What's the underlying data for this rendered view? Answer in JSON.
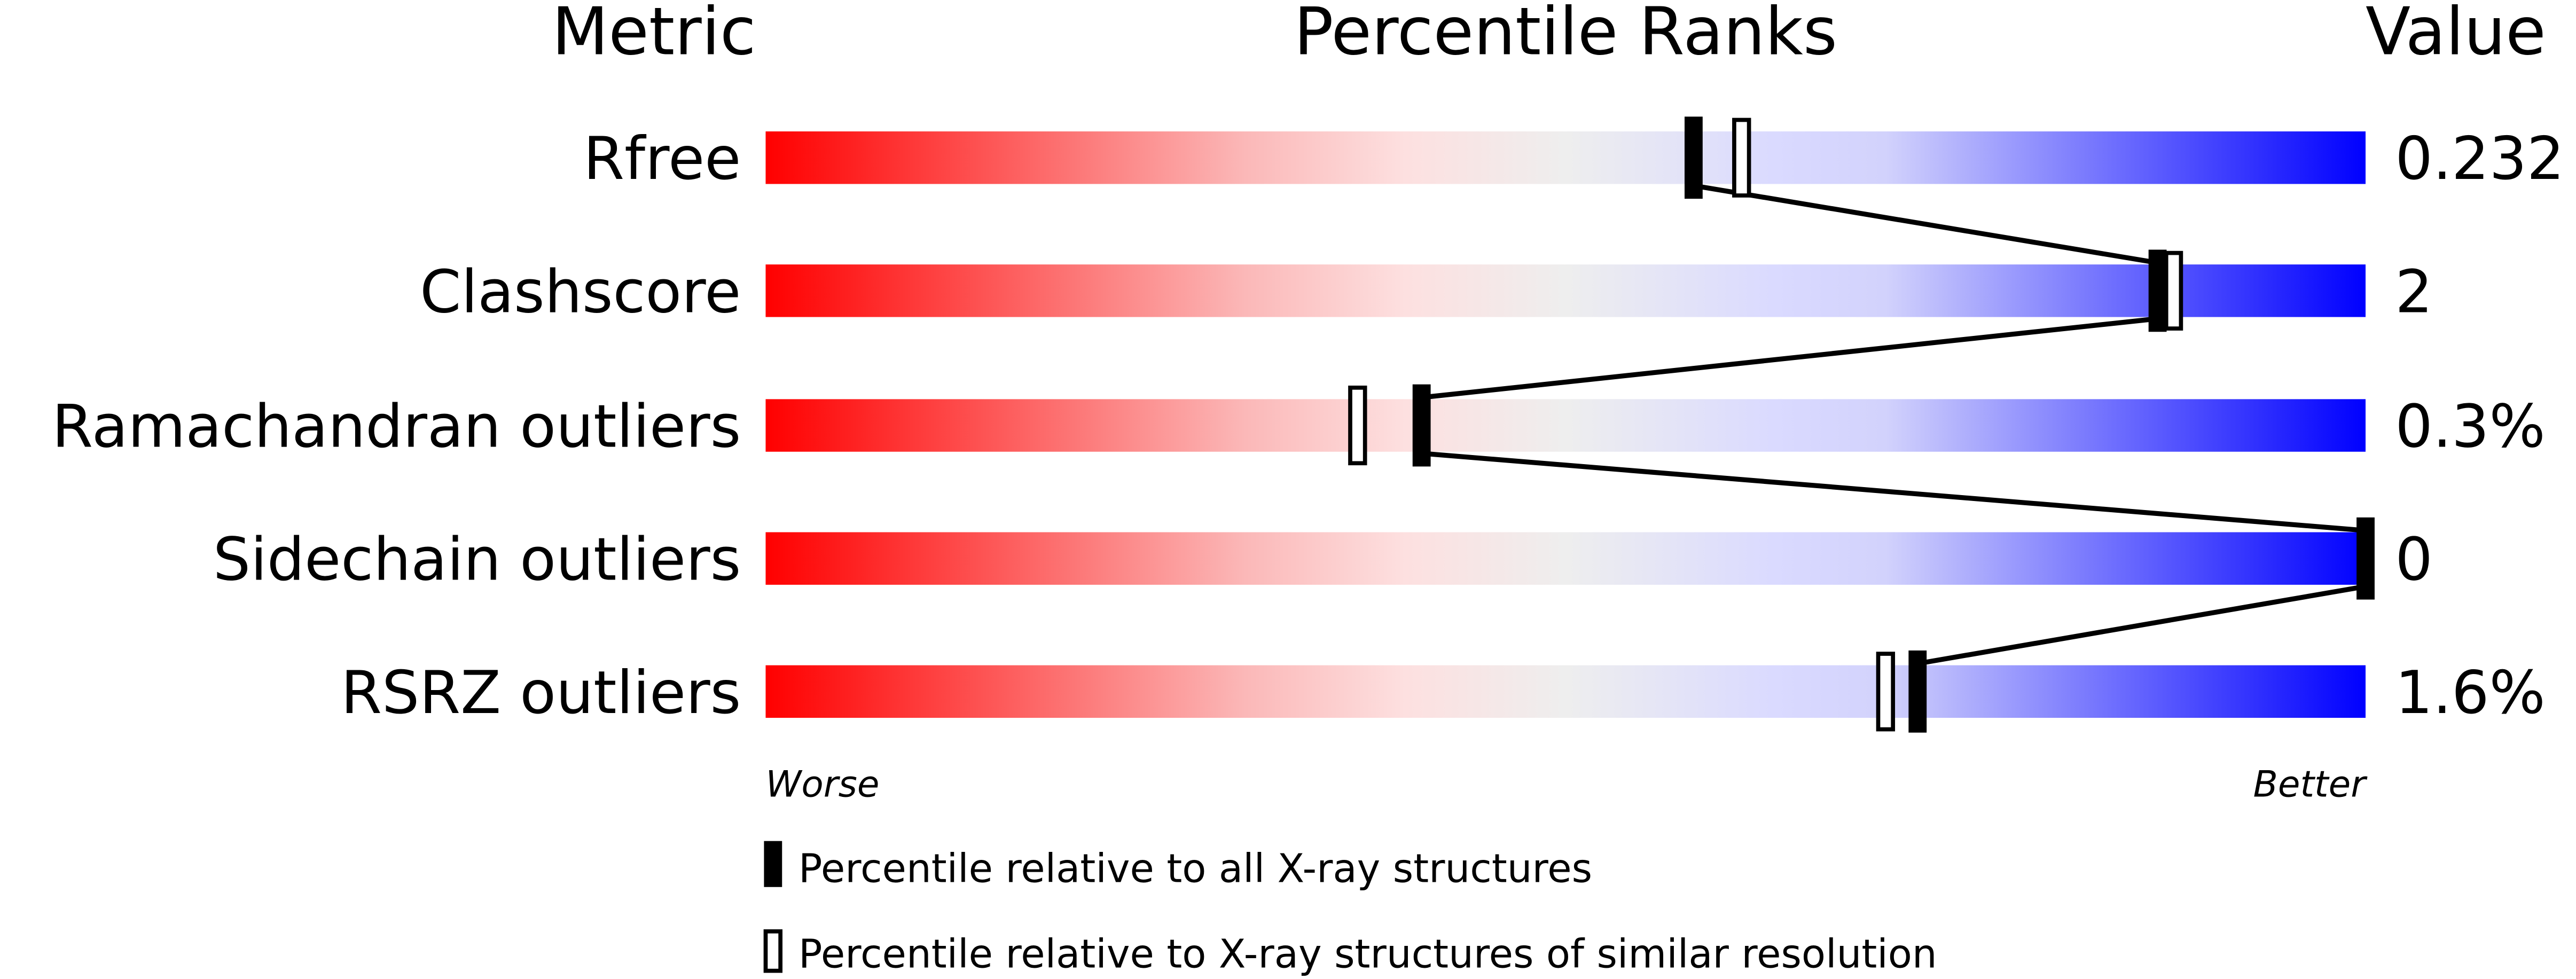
{
  "chart_data": {
    "type": "percentile-rank-bars",
    "headers": {
      "metric": "Metric",
      "ranks": "Percentile Ranks",
      "value": "Value"
    },
    "xlim": [
      0,
      100
    ],
    "rows": [
      {
        "metric": "Rfree",
        "value": "0.232",
        "percentile_all": 58,
        "percentile_similar": 61
      },
      {
        "metric": "Clashscore",
        "value": "2",
        "percentile_all": 87,
        "percentile_similar": 88
      },
      {
        "metric": "Ramachandran outliers",
        "value": "0.3%",
        "percentile_all": 41,
        "percentile_similar": 37
      },
      {
        "metric": "Sidechain outliers",
        "value": "0",
        "percentile_all": 100,
        "percentile_similar": null
      },
      {
        "metric": "RSRZ outliers",
        "value": "1.6%",
        "percentile_all": 72,
        "percentile_similar": 70
      }
    ],
    "axis_labels": {
      "worse": "Worse",
      "better": "Better"
    },
    "legend": {
      "all": "Percentile relative to all X-ray structures",
      "similar": "Percentile relative to X-ray structures of similar resolution"
    },
    "colors": {
      "worse": "#ff0000",
      "middle": "#eeeeee",
      "better": "#0000ff",
      "marker": "#000000"
    }
  }
}
